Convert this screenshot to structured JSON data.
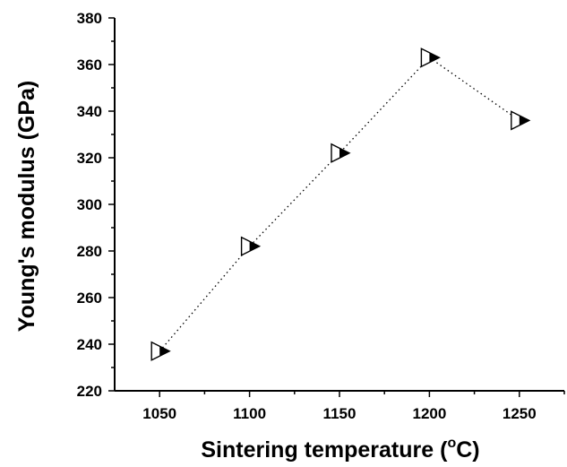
{
  "chart_data": {
    "type": "scatter",
    "xlabel": "Sintering temperature (",
    "xlabel_sup": "o",
    "xlabel_tail": "C)",
    "ylabel": "Young's modulus (GPa)",
    "xlim": [
      1025,
      1275
    ],
    "ylim": [
      220,
      380
    ],
    "x_ticks": [
      1050,
      1100,
      1150,
      1200,
      1250
    ],
    "y_ticks": [
      220,
      240,
      260,
      280,
      300,
      320,
      340,
      360,
      380
    ],
    "grid": false,
    "marker": "half-filled-right-triangle",
    "line_style": "dotted",
    "series": [
      {
        "x": [
          1050,
          1100,
          1150,
          1200,
          1250
        ],
        "y": [
          237,
          282,
          322,
          363,
          336
        ]
      }
    ]
  }
}
